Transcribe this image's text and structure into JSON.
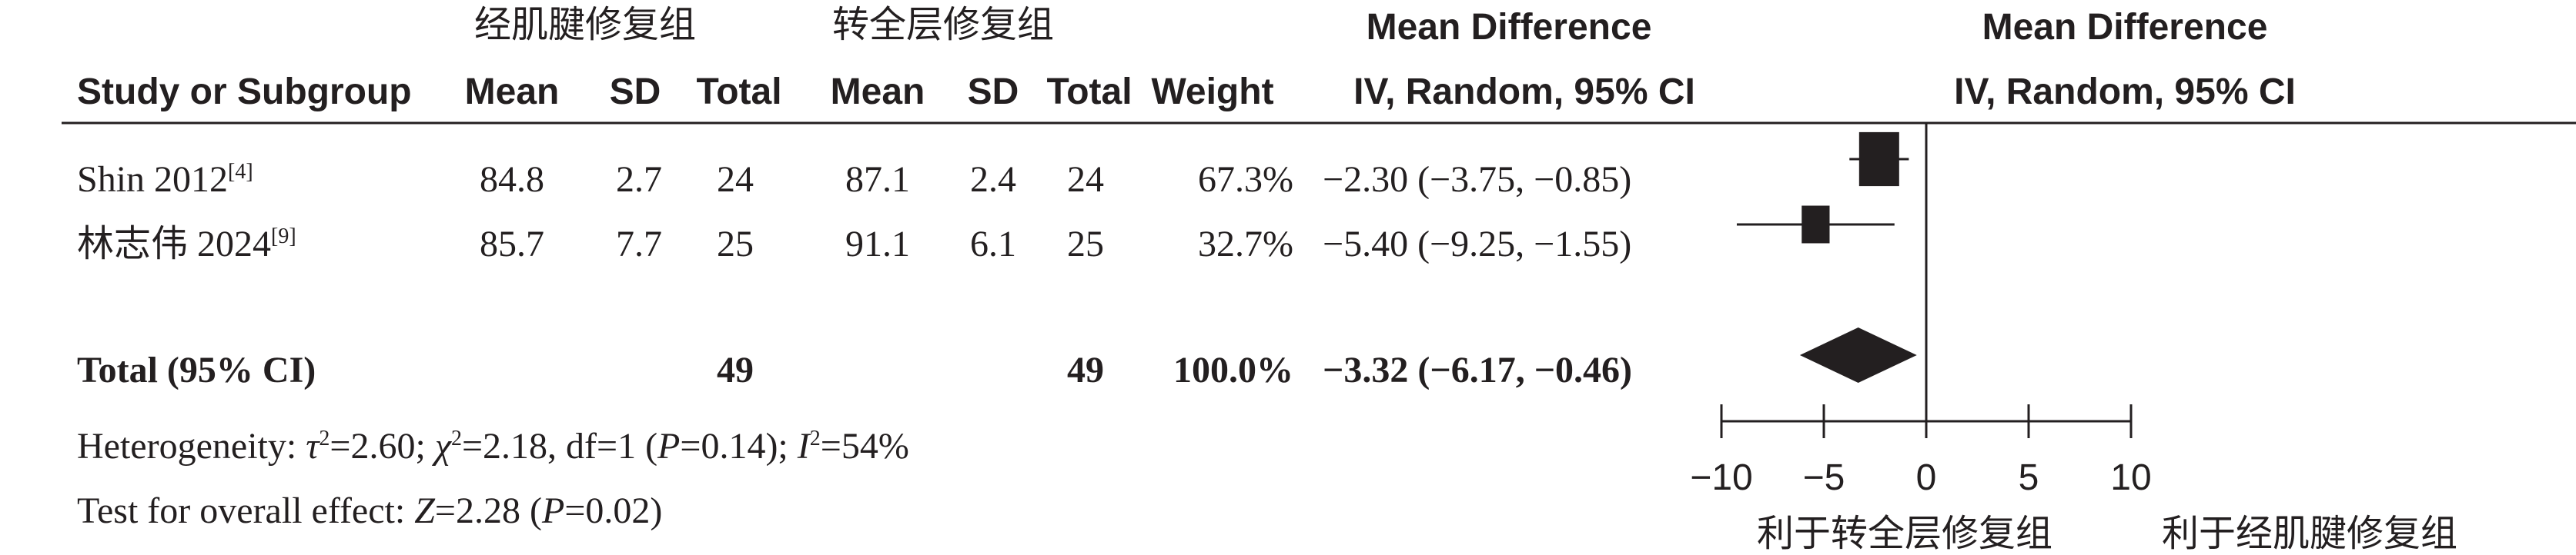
{
  "header": {
    "group1_name": "经肌腱修复组",
    "group2_name": "转全层修复组",
    "md_title": "Mean Difference",
    "plot_title": "Mean Difference",
    "col_study": "Study or Subgroup",
    "col_mean1": "Mean",
    "col_sd1": "SD",
    "col_total1": "Total",
    "col_mean2": "Mean",
    "col_sd2": "SD",
    "col_total2": "Total",
    "col_weight": "Weight",
    "col_md": "IV, Random, 95% CI",
    "plot_subtitle": "IV, Random, 95% CI"
  },
  "studies": [
    {
      "name": "Shin 2012",
      "ref": "[4]",
      "mean1": "84.8",
      "sd1": "2.7",
      "total1": "24",
      "mean2": "87.1",
      "sd2": "2.4",
      "total2": "24",
      "weight": "67.3%",
      "ci": "−2.30 (−3.75, −0.85)"
    },
    {
      "name": "林志伟 2024",
      "ref": "[9]",
      "mean1": "85.7",
      "sd1": "7.7",
      "total1": "25",
      "mean2": "91.1",
      "sd2": "6.1",
      "total2": "25",
      "weight": "32.7%",
      "ci": "−5.40 (−9.25, −1.55)"
    }
  ],
  "total": {
    "label": "Total (95% CI)",
    "total1": "49",
    "total2": "49",
    "weight": "100.0%",
    "ci": "−3.32 (−6.17, −0.46)"
  },
  "heterogeneity": {
    "prefix": "Heterogeneity: ",
    "tau_sym": "τ",
    "tau_val": "=2.60; ",
    "chi_sym": "χ",
    "chi_val": "=2.18, df=1 (",
    "p_sym": "P",
    "p_val": "=0.14); ",
    "i_sym": "I",
    "i_val": "=54%",
    "sup": "2"
  },
  "overall": {
    "prefix": "Test for overall effect: ",
    "z_sym": "Z",
    "z_val": "=2.28 (",
    "p_sym": "P",
    "p_val": "=0.02)"
  },
  "axis": {
    "tick_labels": [
      "−10",
      "−5",
      "0",
      "5",
      "10"
    ],
    "favors_left": "利于转全层修复组",
    "favors_right": "利于经肌腱修复组"
  },
  "chart_data": {
    "type": "forest",
    "xlim": [
      -10,
      10
    ],
    "ticks": [
      -10,
      -5,
      0,
      5,
      10
    ],
    "studies": [
      {
        "name": "Shin 2012",
        "md": -2.3,
        "lower": -3.75,
        "upper": -0.85,
        "weight": 67.3
      },
      {
        "name": "林志伟 2024",
        "md": -5.4,
        "lower": -9.25,
        "upper": -1.55,
        "weight": 32.7
      }
    ],
    "pooled": {
      "md": -3.32,
      "lower": -6.17,
      "upper": -0.46
    }
  },
  "colors": {
    "ink": "#231f20"
  }
}
